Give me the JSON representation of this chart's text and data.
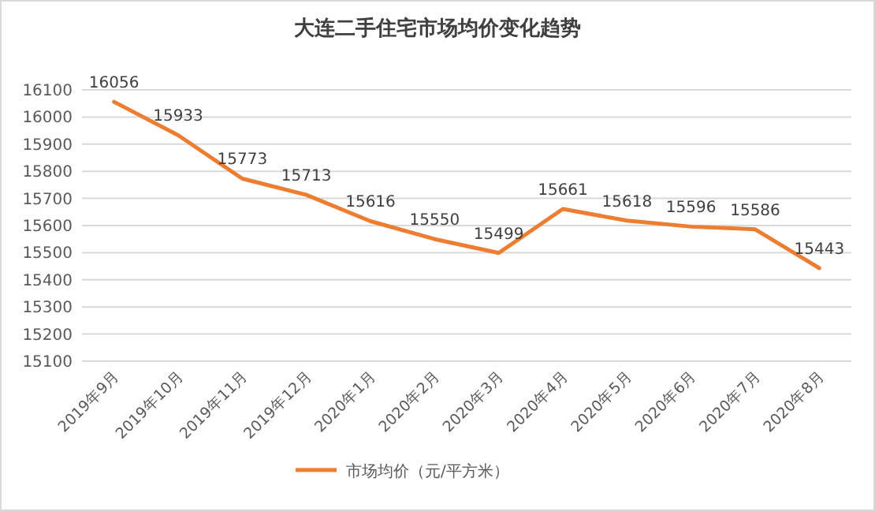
{
  "chart_data": {
    "type": "line",
    "title": "大连二手住宅市场均价变化趋势",
    "categories": [
      "2019年9月",
      "2019年10月",
      "2019年11月",
      "2019年12月",
      "2020年1月",
      "2020年2月",
      "2020年3月",
      "2020年4月",
      "2020年5月",
      "2020年6月",
      "2020年7月",
      "2020年8月"
    ],
    "series": [
      {
        "name": "市场均价（元/平方米）",
        "color": "#ed7d31",
        "values": [
          16056,
          15933,
          15773,
          15713,
          15616,
          15550,
          15499,
          15661,
          15618,
          15596,
          15586,
          15443
        ]
      }
    ],
    "ylim": [
      15100,
      16100
    ],
    "yticks": [
      15100,
      15200,
      15300,
      15400,
      15500,
      15600,
      15700,
      15800,
      15900,
      16000,
      16100
    ],
    "grid": "y",
    "legend": "bottom",
    "data_labels": true
  }
}
